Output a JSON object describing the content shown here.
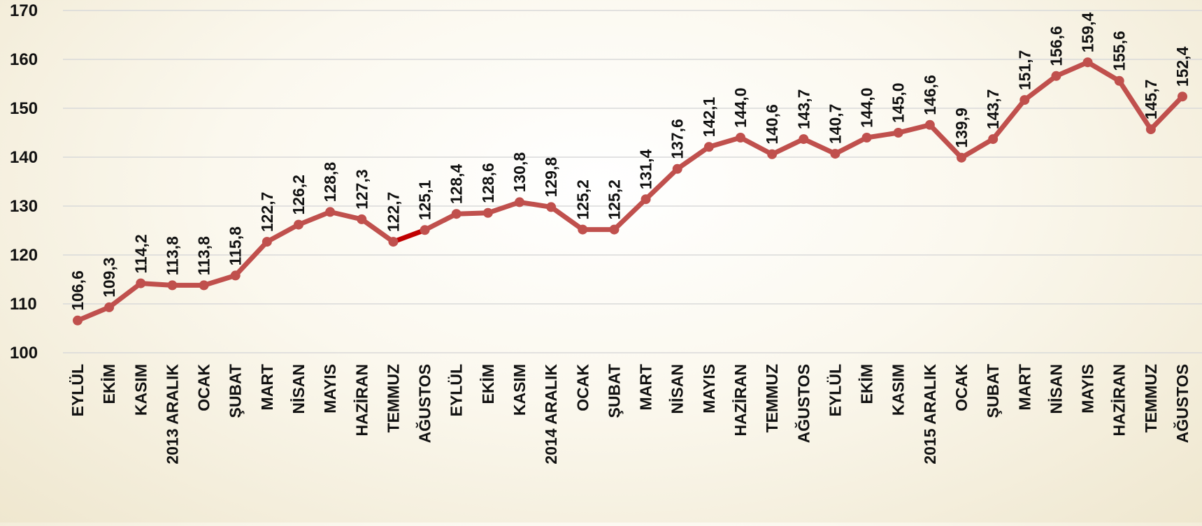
{
  "chart_data": {
    "type": "line",
    "title": "",
    "xlabel": "",
    "ylabel": "",
    "ylim": [
      100,
      170
    ],
    "yticks": [
      100,
      110,
      120,
      130,
      140,
      150,
      160,
      170
    ],
    "grid": true,
    "categories": [
      "EYLÜL",
      "EKİM",
      "KASIM",
      "2013 ARALIK",
      "OCAK",
      "ŞUBAT",
      "MART",
      "NİSAN",
      "MAYIS",
      "HAZİRAN",
      "TEMMUZ",
      "AĞUSTOS",
      "EYLÜL",
      "EKİM",
      "KASIM",
      "2014 ARALIK",
      "OCAK",
      "ŞUBAT",
      "MART",
      "NİSAN",
      "MAYIS",
      "HAZİRAN",
      "TEMMUZ",
      "AĞUSTOS",
      "EYLÜL",
      "EKİM",
      "KASIM",
      "2015 ARALIK",
      "OCAK",
      "ŞUBAT",
      "MART",
      "NİSAN",
      "MAYIS",
      "HAZİRAN",
      "TEMMUZ",
      "AĞUSTOS"
    ],
    "values": [
      106.6,
      109.3,
      114.2,
      113.8,
      113.8,
      115.8,
      122.7,
      126.2,
      128.8,
      127.3,
      122.7,
      125.1,
      128.4,
      128.6,
      130.8,
      129.8,
      125.2,
      125.2,
      131.4,
      137.6,
      142.1,
      144.0,
      140.6,
      143.7,
      140.7,
      144.0,
      145.0,
      146.6,
      139.9,
      143.7,
      151.7,
      156.6,
      159.4,
      155.6,
      145.7,
      152.4
    ],
    "data_labels": [
      "106,6",
      "109,3",
      "114,2",
      "113,8",
      "113,8",
      "115,8",
      "122,7",
      "126,2",
      "128,8",
      "127,3",
      "122,7",
      "125,1",
      "128,4",
      "128,6",
      "130,8",
      "129,8",
      "125,2",
      "125,2",
      "131,4",
      "137,6",
      "142,1",
      "144,0",
      "140,6",
      "143,7",
      "140,7",
      "144,0",
      "145,0",
      "146,6",
      "139,9",
      "143,7",
      "151,7",
      "156,6",
      "159,4",
      "155,6",
      "145,7",
      "152,4"
    ],
    "highlight_segment": [
      10,
      11
    ],
    "colors": {
      "line": "#c0504d",
      "highlight": "#c00000",
      "grid": "#d9d9d9",
      "text": "#111111"
    }
  }
}
